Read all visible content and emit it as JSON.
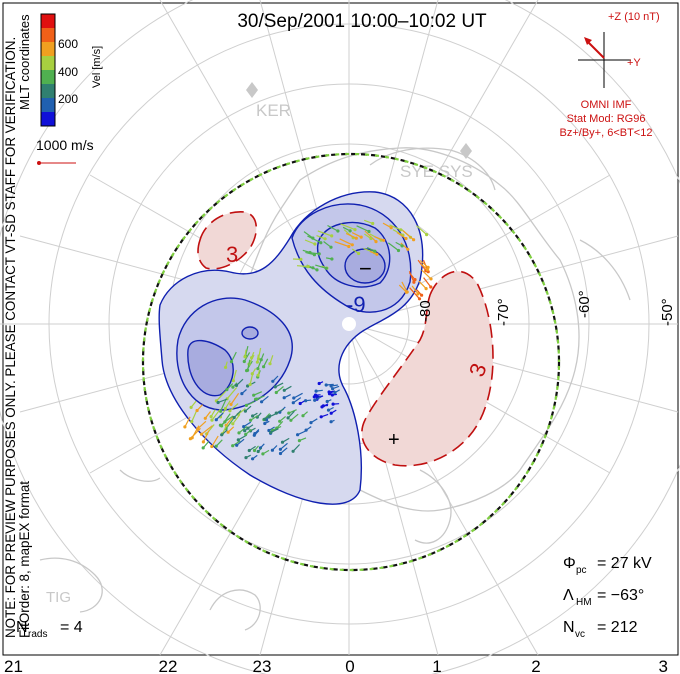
{
  "header": {
    "title": "30/Sep/2001 10:00–10:02 UT"
  },
  "colorbar": {
    "label": "Vel [m/s]",
    "ticks": [
      "600",
      "400",
      "200"
    ],
    "colors": [
      "#e01010",
      "#f06018",
      "#f0a020",
      "#a8d040",
      "#50b050",
      "#308070",
      "#2060b0",
      "#1010d8"
    ]
  },
  "side_text": {
    "coords": "MLT coordinates",
    "note": "NOTE: FOR PREVIEW PURPOSES ONLY. PLEASE CONTACT VT-SD STAFF FOR VERIFICATION.",
    "fitorder": "FitOrder: 8, mapEX format"
  },
  "scale_vector": {
    "label": "1000 m/s"
  },
  "imf": {
    "z_label": "+Z (10 nT)",
    "y_label": "+Y",
    "omni": "OMNI IMF",
    "stat_mod": "Stat Mod: RG96",
    "condition": "Bz+/By+, 6<BT<12"
  },
  "stations": [
    {
      "name": "KER"
    },
    {
      "name": "SYE SYS"
    },
    {
      "name": "TIG"
    }
  ],
  "latitudes": [
    "-50°",
    "-60°",
    "-70°",
    "-80"
  ],
  "mlt_labels": [
    "21",
    "22",
    "23",
    "0",
    "1",
    "2",
    "3"
  ],
  "contours": {
    "neg_label": "-9",
    "pos_label_1": "3",
    "pos_label_2": "3",
    "min_marker": "−",
    "max_marker": "+"
  },
  "stats": {
    "phi_sym": "Φ",
    "phi_sub": "pc",
    "phi_val": "= 27 kV",
    "lam_sym": "Λ",
    "lam_sub": "HM",
    "lam_val": "= −63°",
    "nvc_sym": "N",
    "nvc_sub": "vc",
    "nvc_val": "= 212",
    "nrads_sym": "N",
    "nrads_sub": "rads",
    "nrads_val": "= 4"
  },
  "map_colors": {
    "neg_fill": "#d6d9ef",
    "neg_fill_dark": "#a8acdf",
    "neg_stroke": "#1020b0",
    "pos_fill": "#f1d8d6",
    "pos_stroke": "#c01010",
    "hm_boundary": "#111111",
    "hm_dash": "#80d040"
  }
}
